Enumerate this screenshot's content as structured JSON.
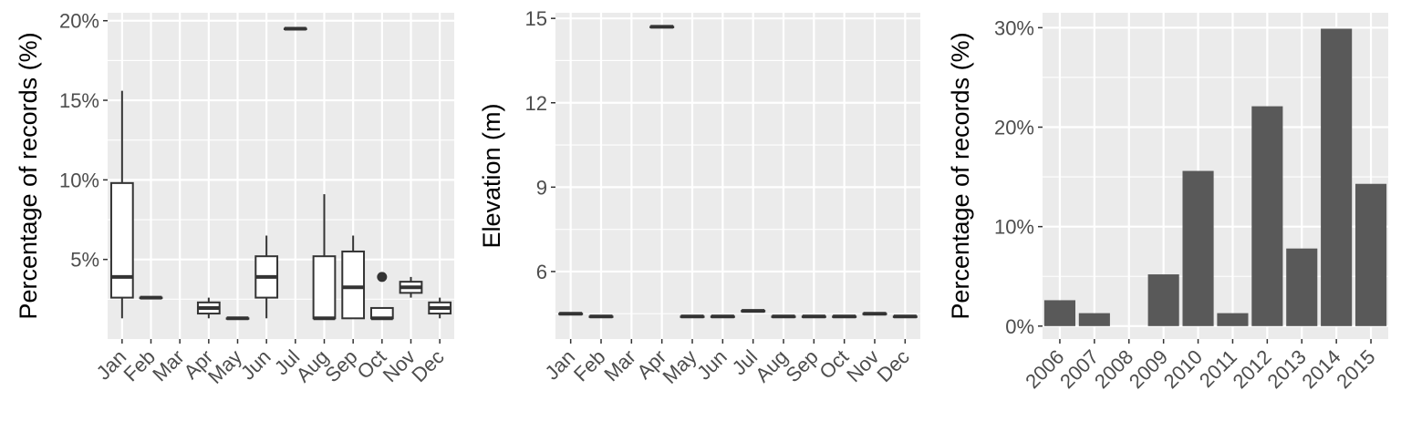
{
  "chart_data": [
    {
      "type": "box",
      "title": "",
      "xlabel": "",
      "ylabel": "Percentage of records (%)",
      "categories": [
        "Jan",
        "Feb",
        "Mar",
        "Apr",
        "May",
        "Jun",
        "Jul",
        "Aug",
        "Sep",
        "Oct",
        "Nov",
        "Dec"
      ],
      "ylim": [
        0,
        20.5
      ],
      "yticks": [
        5,
        10,
        15,
        20
      ],
      "ytick_labels": [
        "5%",
        "10%",
        "15%",
        "20%"
      ],
      "grid": true,
      "boxes": [
        {
          "category": "Jan",
          "min": 1.3,
          "q1": 2.6,
          "median": 3.9,
          "q3": 9.8,
          "max": 15.6,
          "outliers": []
        },
        {
          "category": "Feb",
          "min": 2.6,
          "q1": 2.6,
          "median": 2.6,
          "q3": 2.6,
          "max": 2.6,
          "outliers": []
        },
        {
          "category": "Mar",
          "min": null,
          "q1": null,
          "median": null,
          "q3": null,
          "max": null,
          "outliers": []
        },
        {
          "category": "Apr",
          "min": 1.3,
          "q1": 1.6,
          "median": 1.95,
          "q3": 2.3,
          "max": 2.6,
          "outliers": []
        },
        {
          "category": "May",
          "min": 1.3,
          "q1": 1.3,
          "median": 1.3,
          "q3": 1.3,
          "max": 1.3,
          "outliers": []
        },
        {
          "category": "Jun",
          "min": 1.3,
          "q1": 2.6,
          "median": 3.9,
          "q3": 5.2,
          "max": 6.5,
          "outliers": []
        },
        {
          "category": "Jul",
          "min": 19.5,
          "q1": 19.5,
          "median": 19.5,
          "q3": 19.5,
          "max": 19.5,
          "outliers": []
        },
        {
          "category": "Aug",
          "min": 1.3,
          "q1": 1.3,
          "median": 1.3,
          "q3": 5.2,
          "max": 9.1,
          "outliers": []
        },
        {
          "category": "Sep",
          "min": 1.3,
          "q1": 1.3,
          "median": 3.25,
          "q3": 5.5,
          "max": 6.5,
          "outliers": []
        },
        {
          "category": "Oct",
          "min": 1.3,
          "q1": 1.3,
          "median": 1.3,
          "q3": 1.95,
          "max": 1.95,
          "outliers": [
            3.9
          ]
        },
        {
          "category": "Nov",
          "min": 2.6,
          "q1": 2.9,
          "median": 3.25,
          "q3": 3.6,
          "max": 3.9,
          "outliers": []
        },
        {
          "category": "Dec",
          "min": 1.3,
          "q1": 1.6,
          "median": 1.95,
          "q3": 2.3,
          "max": 2.6,
          "outliers": []
        }
      ]
    },
    {
      "type": "box",
      "title": "",
      "xlabel": "",
      "ylabel": "Elevation (m)",
      "categories": [
        "Jan",
        "Feb",
        "Mar",
        "Apr",
        "May",
        "Jun",
        "Jul",
        "Aug",
        "Sep",
        "Oct",
        "Nov",
        "Dec"
      ],
      "ylim": [
        3.6,
        15.2
      ],
      "yticks": [
        6,
        9,
        12,
        15
      ],
      "ytick_labels": [
        "6",
        "9",
        "12",
        "15"
      ],
      "grid": true,
      "boxes": [
        {
          "category": "Jan",
          "min": 4.5,
          "q1": 4.5,
          "median": 4.5,
          "q3": 4.5,
          "max": 4.5,
          "outliers": []
        },
        {
          "category": "Feb",
          "min": 4.4,
          "q1": 4.4,
          "median": 4.4,
          "q3": 4.4,
          "max": 4.4,
          "outliers": []
        },
        {
          "category": "Mar",
          "min": null,
          "q1": null,
          "median": null,
          "q3": null,
          "max": null,
          "outliers": []
        },
        {
          "category": "Apr",
          "min": 14.7,
          "q1": 14.7,
          "median": 14.7,
          "q3": 14.7,
          "max": 14.7,
          "outliers": []
        },
        {
          "category": "May",
          "min": 4.4,
          "q1": 4.4,
          "median": 4.4,
          "q3": 4.4,
          "max": 4.4,
          "outliers": []
        },
        {
          "category": "Jun",
          "min": 4.4,
          "q1": 4.4,
          "median": 4.4,
          "q3": 4.4,
          "max": 4.4,
          "outliers": []
        },
        {
          "category": "Jul",
          "min": 4.6,
          "q1": 4.6,
          "median": 4.6,
          "q3": 4.6,
          "max": 4.6,
          "outliers": []
        },
        {
          "category": "Aug",
          "min": 4.4,
          "q1": 4.4,
          "median": 4.4,
          "q3": 4.4,
          "max": 4.4,
          "outliers": []
        },
        {
          "category": "Sep",
          "min": 4.4,
          "q1": 4.4,
          "median": 4.4,
          "q3": 4.4,
          "max": 4.4,
          "outliers": []
        },
        {
          "category": "Oct",
          "min": 4.4,
          "q1": 4.4,
          "median": 4.4,
          "q3": 4.4,
          "max": 4.4,
          "outliers": []
        },
        {
          "category": "Nov",
          "min": 4.5,
          "q1": 4.5,
          "median": 4.5,
          "q3": 4.5,
          "max": 4.5,
          "outliers": []
        },
        {
          "category": "Dec",
          "min": 4.4,
          "q1": 4.4,
          "median": 4.4,
          "q3": 4.4,
          "max": 4.4,
          "outliers": []
        }
      ]
    },
    {
      "type": "bar",
      "title": "",
      "xlabel": "",
      "ylabel": "Percentage of records (%)",
      "categories": [
        "2006",
        "2007",
        "2008",
        "2009",
        "2010",
        "2011",
        "2012",
        "2013",
        "2014",
        "2015"
      ],
      "values": [
        2.6,
        1.3,
        0,
        5.2,
        15.6,
        1.3,
        22.1,
        7.8,
        29.9,
        14.3
      ],
      "ylim": [
        -1.3,
        31.5
      ],
      "yticks": [
        0,
        10,
        20,
        30
      ],
      "ytick_labels": [
        "0%",
        "10%",
        "20%",
        "30%"
      ],
      "grid": true
    }
  ],
  "colors": {
    "panel": "#ebebeb",
    "grid": "#ffffff",
    "bar": "#595959",
    "box_line": "#333333",
    "box_fill": "#ffffff",
    "tick_text": "#4d4d4d",
    "axis_title": "#000000"
  }
}
